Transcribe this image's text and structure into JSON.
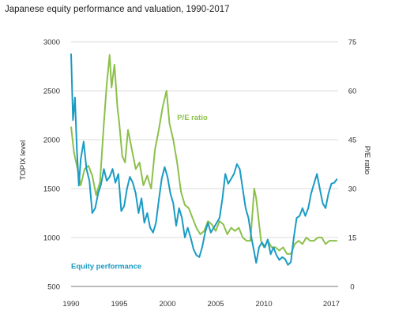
{
  "title": "Japanese equity performance and valuation, 1990-2017",
  "chart_data": {
    "type": "line",
    "title": "Japanese equity performance and valuation, 1990-2017",
    "xlabel": "",
    "ylabel": "TOPIX level",
    "y2label": "P/E ratio",
    "xlim": [
      1990,
      2017.7
    ],
    "ylim": [
      500,
      3000
    ],
    "y2lim": [
      0,
      75
    ],
    "x_ticks": [
      1990,
      1995,
      2000,
      2005,
      2010,
      2017
    ],
    "y_ticks": [
      500,
      1000,
      1500,
      2000,
      2500,
      3000
    ],
    "y2_ticks": [
      0,
      15,
      30,
      45,
      60,
      75
    ],
    "grid": true,
    "colors": {
      "topix": "#1a9bc4",
      "pe": "#8cc04b",
      "grid": "#cfcfcf"
    },
    "series": [
      {
        "name": "Equity performance",
        "axis": "left",
        "x": [
          1990.0,
          1990.2,
          1990.4,
          1990.6,
          1990.8,
          1991.0,
          1991.3,
          1991.6,
          1991.9,
          1992.2,
          1992.5,
          1992.8,
          1993.1,
          1993.4,
          1993.7,
          1994.0,
          1994.3,
          1994.6,
          1994.9,
          1995.2,
          1995.5,
          1995.8,
          1996.1,
          1996.4,
          1996.7,
          1997.0,
          1997.3,
          1997.6,
          1997.9,
          1998.2,
          1998.5,
          1998.8,
          1999.1,
          1999.4,
          1999.7,
          2000.0,
          2000.3,
          2000.6,
          2000.9,
          2001.2,
          2001.5,
          2001.8,
          2002.1,
          2002.4,
          2002.7,
          2003.0,
          2003.3,
          2003.6,
          2003.9,
          2004.2,
          2004.5,
          2004.8,
          2005.1,
          2005.4,
          2005.7,
          2006.0,
          2006.3,
          2006.6,
          2006.9,
          2007.2,
          2007.5,
          2007.8,
          2008.1,
          2008.4,
          2008.7,
          2009.0,
          2009.2,
          2009.5,
          2009.8,
          2010.1,
          2010.4,
          2010.7,
          2011.0,
          2011.3,
          2011.6,
          2011.9,
          2012.2,
          2012.5,
          2012.8,
          2013.1,
          2013.4,
          2013.7,
          2014.0,
          2014.3,
          2014.6,
          2014.9,
          2015.2,
          2015.5,
          2015.8,
          2016.1,
          2016.4,
          2016.7,
          2017.0,
          2017.3,
          2017.6
        ],
        "values": [
          2880,
          2200,
          2430,
          1900,
          1530,
          1800,
          1980,
          1700,
          1580,
          1250,
          1300,
          1450,
          1540,
          1700,
          1580,
          1620,
          1700,
          1560,
          1650,
          1270,
          1320,
          1500,
          1620,
          1560,
          1450,
          1250,
          1400,
          1150,
          1250,
          1100,
          1050,
          1150,
          1380,
          1600,
          1720,
          1620,
          1450,
          1350,
          1120,
          1300,
          1200,
          1000,
          1100,
          1000,
          880,
          820,
          800,
          900,
          1050,
          1150,
          1050,
          1100,
          1150,
          1200,
          1400,
          1650,
          1550,
          1600,
          1650,
          1750,
          1700,
          1500,
          1300,
          1200,
          1000,
          850,
          740,
          900,
          950,
          900,
          980,
          830,
          900,
          820,
          770,
          800,
          780,
          720,
          750,
          1000,
          1200,
          1220,
          1300,
          1220,
          1300,
          1450,
          1550,
          1650,
          1500,
          1350,
          1300,
          1450,
          1550,
          1560,
          1600
        ]
      },
      {
        "name": "P/E ratio",
        "axis": "right",
        "x": [
          1990.0,
          1990.3,
          1990.6,
          1991.0,
          1991.4,
          1991.8,
          1992.2,
          1992.6,
          1993.0,
          1993.4,
          1993.7,
          1994.0,
          1994.2,
          1994.5,
          1994.8,
          1995.0,
          1995.3,
          1995.6,
          1995.9,
          1996.3,
          1996.7,
          1997.1,
          1997.5,
          1997.9,
          1998.3,
          1998.7,
          1999.1,
          1999.5,
          1999.9,
          2000.2,
          2000.6,
          2001.0,
          2001.4,
          2001.8,
          2002.2,
          2002.6,
          2003.0,
          2003.4,
          2003.8,
          2004.2,
          2004.6,
          2005.0,
          2005.4,
          2005.8,
          2006.2,
          2006.6,
          2007.0,
          2007.4,
          2007.8,
          2008.2,
          2008.6,
          2009.0,
          2009.2,
          2009.4,
          2009.7,
          2010.0,
          2010.4,
          2010.8,
          2011.2,
          2011.6,
          2012.0,
          2012.4,
          2012.8,
          2013.2,
          2013.6,
          2014.0,
          2014.4,
          2014.8,
          2015.2,
          2015.6,
          2016.0,
          2016.4,
          2016.8,
          2017.2,
          2017.6
        ],
        "values": [
          49,
          41,
          37,
          31,
          36,
          37,
          34,
          28,
          32,
          50,
          62,
          71,
          61,
          68,
          55,
          50,
          40,
          38,
          48,
          42,
          36,
          38,
          31,
          34,
          30,
          42,
          48,
          55,
          60,
          50,
          45,
          38,
          29,
          25,
          24,
          21,
          18,
          16,
          17,
          20,
          19,
          17,
          20,
          19,
          16,
          18,
          17,
          18,
          15,
          14,
          14,
          30,
          27,
          22,
          14,
          12,
          14,
          12,
          12,
          11,
          12,
          10,
          10,
          13,
          14,
          13,
          15,
          14,
          14,
          15,
          15,
          13,
          14,
          14,
          14
        ]
      }
    ],
    "annotations": [
      {
        "text": "P/E ratio",
        "series": "P/E ratio",
        "x": 2001.0,
        "y2": 51
      },
      {
        "text": "Equity performance",
        "series": "Equity performance",
        "x": 1990.0,
        "y": 680
      }
    ]
  }
}
